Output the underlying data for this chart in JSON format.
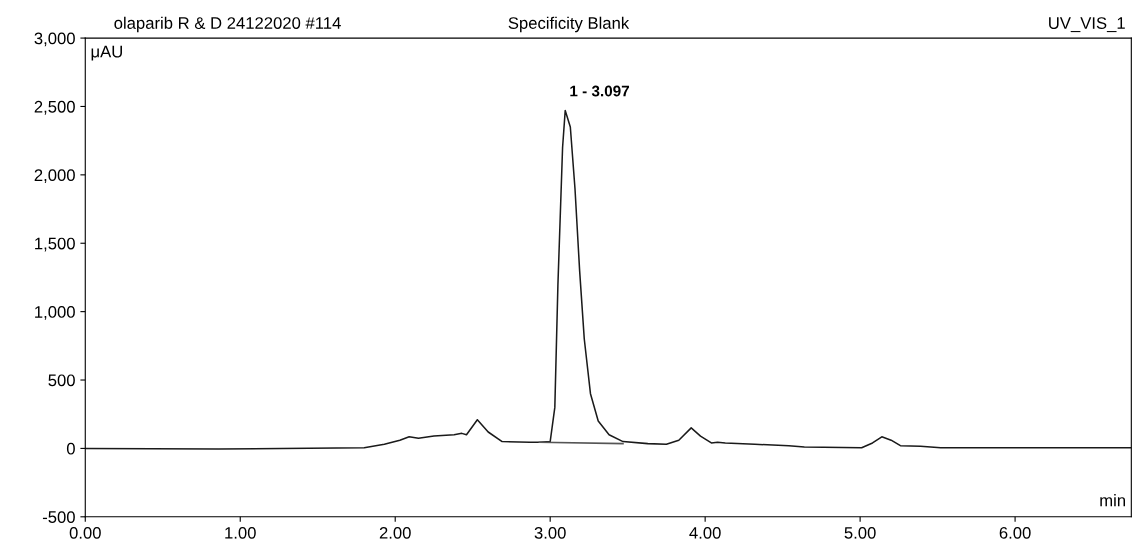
{
  "chart_data": {
    "type": "line",
    "title": "Specificity Blank",
    "xlabel": "min",
    "ylabel": "μAU",
    "annotations": [
      "olaparib R & D 24122020 #114",
      "UV_VIS_1",
      {
        "text": "1 - 3.097",
        "x": 3.097,
        "y": 2470
      }
    ],
    "xlim": [
      0,
      6.75
    ],
    "ylim": [
      -500,
      3000
    ],
    "xticks": [
      {
        "value": 0,
        "label": "0.00"
      },
      {
        "value": 1,
        "label": "1.00"
      },
      {
        "value": 2,
        "label": "2.00"
      },
      {
        "value": 3,
        "label": "3.00"
      },
      {
        "value": 4,
        "label": "4.00"
      },
      {
        "value": 5,
        "label": "5.00"
      },
      {
        "value": 6,
        "label": "6.00"
      }
    ],
    "yticks": [
      {
        "value": -500,
        "label": "-500"
      },
      {
        "value": 0,
        "label": "0"
      },
      {
        "value": 500,
        "label": "500"
      },
      {
        "value": 1000,
        "label": "1,000"
      },
      {
        "value": 1500,
        "label": "1,500"
      },
      {
        "value": 2000,
        "label": "2,000"
      },
      {
        "value": 2500,
        "label": "2,500"
      },
      {
        "value": 3000,
        "label": "3,000"
      }
    ],
    "grid": false,
    "marker": "none",
    "line_style": "solid",
    "series": [
      {
        "color": "#1a1a1a",
        "x": [
          0,
          0.86,
          1.8,
          1.93,
          2.03,
          2.09,
          2.15,
          2.25,
          2.38,
          2.43,
          2.46,
          2.53,
          2.6,
          2.69,
          2.87,
          2.93,
          3.0,
          3.03,
          3.05,
          3.08,
          3.097,
          3.13,
          3.16,
          3.19,
          3.22,
          3.26,
          3.31,
          3.38,
          3.47,
          3.63,
          3.75,
          3.83,
          3.91,
          3.97,
          4.04,
          4.08,
          4.13,
          4.32,
          4.54,
          4.64,
          5.01,
          5.08,
          5.14,
          5.2,
          5.26,
          5.39,
          5.52,
          5.89,
          6.75
        ],
        "values": [
          0,
          -5,
          5,
          30,
          60,
          85,
          75,
          90,
          100,
          110,
          100,
          210,
          120,
          50,
          45,
          45,
          50,
          300,
          1200,
          2200,
          2470,
          2350,
          1900,
          1300,
          800,
          400,
          200,
          100,
          50,
          35,
          30,
          60,
          150,
          90,
          40,
          45,
          40,
          30,
          20,
          10,
          5,
          40,
          85,
          60,
          20,
          15,
          5,
          5,
          5
        ]
      },
      {
        "type": "line",
        "color": "#555555",
        "x": [
          2.93,
          3.47
        ],
        "values": [
          45,
          35
        ]
      }
    ]
  }
}
